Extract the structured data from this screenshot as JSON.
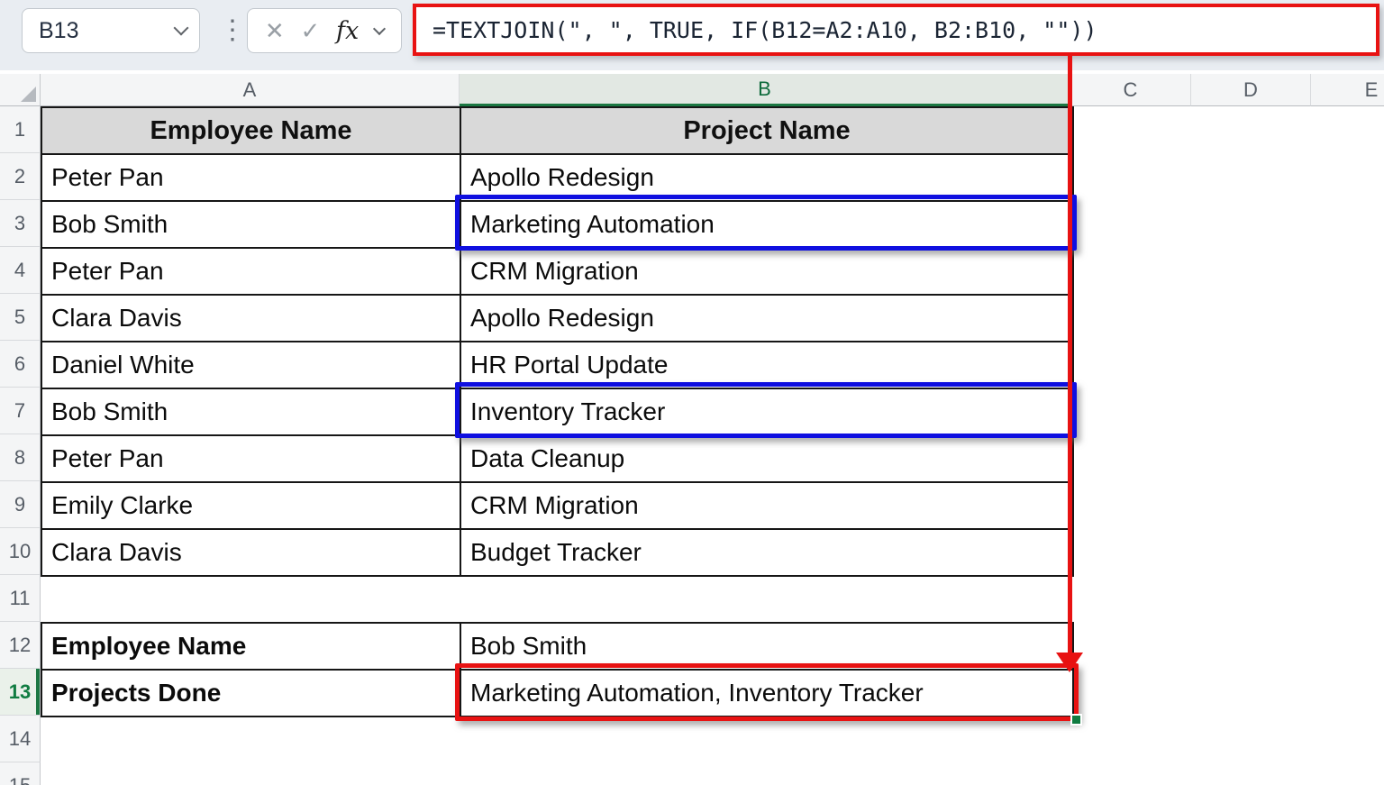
{
  "topbar": {
    "name_box": "B13",
    "formula": "=TEXTJOIN(\", \", TRUE, IF(B12=A2:A10, B2:B10, \"\"))",
    "cancel_icon": "✕",
    "enter_icon": "✓",
    "fx_label": "fx",
    "grip_icon": "⋮"
  },
  "sheet": {
    "columns": [
      "A",
      "B",
      "C",
      "D",
      "E"
    ],
    "selected_column": "B",
    "selected_cell": "B13",
    "row_numbers": [
      "1",
      "2",
      "3",
      "4",
      "5",
      "6",
      "7",
      "8",
      "9",
      "10",
      "11",
      "12",
      "13",
      "14",
      "15"
    ],
    "selected_row": "13"
  },
  "table": {
    "headers": {
      "a": "Employee Name",
      "b": "Project Name"
    },
    "rows": [
      {
        "a": "Peter Pan",
        "b": "Apollo Redesign"
      },
      {
        "a": "Bob Smith",
        "b": "Marketing Automation"
      },
      {
        "a": "Peter Pan",
        "b": "CRM Migration"
      },
      {
        "a": "Clara Davis",
        "b": "Apollo Redesign"
      },
      {
        "a": "Daniel White",
        "b": "HR Portal Update"
      },
      {
        "a": "Bob Smith",
        "b": "Inventory Tracker"
      },
      {
        "a": "Peter Pan",
        "b": "Data Cleanup"
      },
      {
        "a": "Emily Clarke",
        "b": "CRM Migration"
      },
      {
        "a": "Clara Davis",
        "b": "Budget Tracker"
      }
    ],
    "lookup": {
      "employee_label": "Employee Name",
      "employee_value": "Bob Smith",
      "projects_label": "Projects Done",
      "projects_value": "Marketing Automation, Inventory Tracker"
    }
  },
  "colors": {
    "annotation_red": "#e81212",
    "annotation_blue": "#0f0fe0",
    "excel_green": "#107C41",
    "header_fill": "#d9d9d9",
    "topbar_bg": "#e9edf2"
  }
}
